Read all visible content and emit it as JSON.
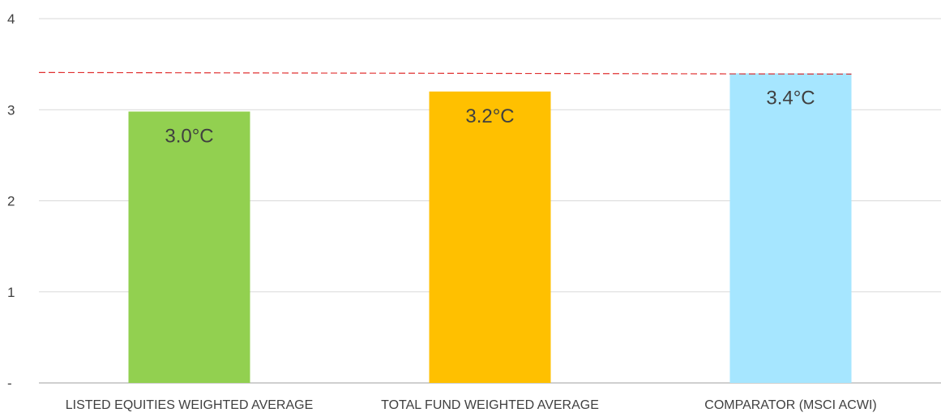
{
  "chart_data": {
    "type": "bar",
    "categories": [
      "LISTED EQUITIES WEIGHTED AVERAGE",
      "TOTAL FUND WEIGHTED AVERAGE",
      "COMPARATOR (MSCI ACWI)"
    ],
    "values": [
      2.98,
      3.2,
      3.4
    ],
    "data_labels": [
      "3.0°C",
      "3.2°C",
      "3.4°C"
    ],
    "bar_colors": [
      "#92d050",
      "#ffc000",
      "#a6e6ff"
    ],
    "yticks": [
      {
        "value": 0,
        "label": "-"
      },
      {
        "value": 1,
        "label": "1"
      },
      {
        "value": 2,
        "label": "2"
      },
      {
        "value": 3,
        "label": "3"
      },
      {
        "value": 4,
        "label": "4"
      }
    ],
    "ylim": [
      0,
      4
    ],
    "grid": true,
    "reference_line": {
      "value": 3.4,
      "style": "dashed",
      "color": "#e03030"
    },
    "title": "",
    "xlabel": "",
    "ylabel": ""
  }
}
